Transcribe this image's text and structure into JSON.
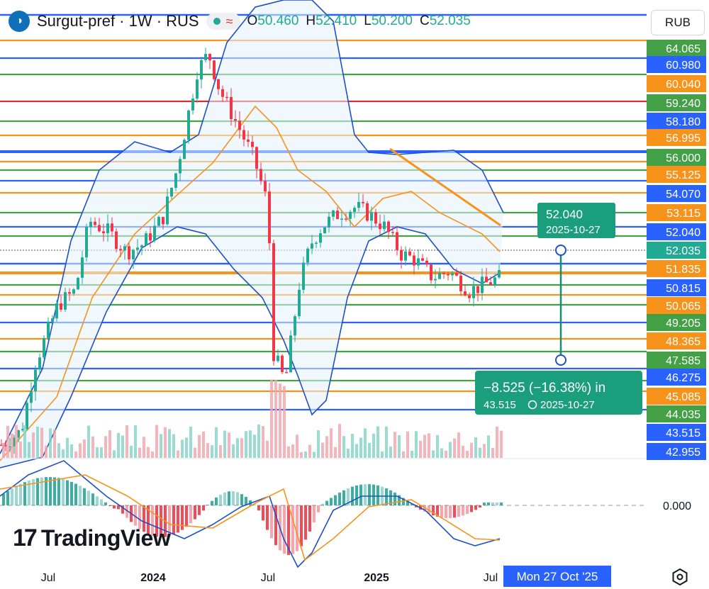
{
  "header": {
    "symbol_icon": "surgut-logo-icon",
    "title": "Surgut-pref · 1W · RUS",
    "ohlc": [
      {
        "label": "O",
        "value": "50.460"
      },
      {
        "label": "H",
        "value": "52.410"
      },
      {
        "label": "L",
        "value": "50.200"
      },
      {
        "label": "C",
        "value": "52.035"
      }
    ]
  },
  "currency_button": "RUB",
  "branding": {
    "logo_mark": "17",
    "logo_text": "TradingView"
  },
  "chart_data": {
    "type": "candlestick",
    "colors": {
      "up": "#22ab94",
      "down": "#f23645",
      "orange": "#f7931a",
      "blue": "#2962ff",
      "green": "#43a047",
      "red": "#d32f2f",
      "band": "#1e50c8"
    },
    "price_axis": {
      "labels": [
        {
          "value": "64.065",
          "color": "#43a047"
        },
        {
          "value": "60.980",
          "color": "#2962ff"
        },
        {
          "value": "60.040",
          "color": "#f7931a"
        },
        {
          "value": "59.240",
          "color": "#43a047"
        },
        {
          "value": "58.180",
          "color": "#2962ff"
        },
        {
          "value": "56.995",
          "color": "#f7931a"
        },
        {
          "value": "56.000",
          "color": "#43a047"
        },
        {
          "value": "55.125",
          "color": "#f7931a"
        },
        {
          "value": "54.070",
          "color": "#2962ff"
        },
        {
          "value": "53.115",
          "color": "#f7931a"
        },
        {
          "value": "52.040",
          "color": "#2962ff"
        },
        {
          "value": "52.035",
          "color": "#22ab94"
        },
        {
          "value": "51.835",
          "color": "#f7931a"
        },
        {
          "value": "50.815",
          "color": "#2962ff"
        },
        {
          "value": "50.065",
          "color": "#f7931a"
        },
        {
          "value": "49.205",
          "color": "#43a047"
        },
        {
          "value": "48.365",
          "color": "#f7931a"
        },
        {
          "value": "47.585",
          "color": "#43a047"
        },
        {
          "value": "46.275",
          "color": "#2962ff"
        },
        {
          "value": "45.085",
          "color": "#f7931a"
        },
        {
          "value": "44.035",
          "color": "#43a047"
        },
        {
          "value": "43.515",
          "color": "#2962ff"
        },
        {
          "value": "42.955",
          "color": "#2962ff"
        }
      ]
    },
    "macd_zero_label": "0.000",
    "time_axis": {
      "labels": [
        "Jul",
        "2024",
        "Jul",
        "2025",
        "Jul"
      ],
      "crosshair_label": "Mon 27 Oct '25"
    },
    "measure_tool": {
      "top_price": "52.040",
      "top_date": "2025-10-27",
      "change_text": "−8.525 (−16.38%) in",
      "bottom_price": "43.515",
      "bottom_date": "2025-10-27"
    }
  }
}
